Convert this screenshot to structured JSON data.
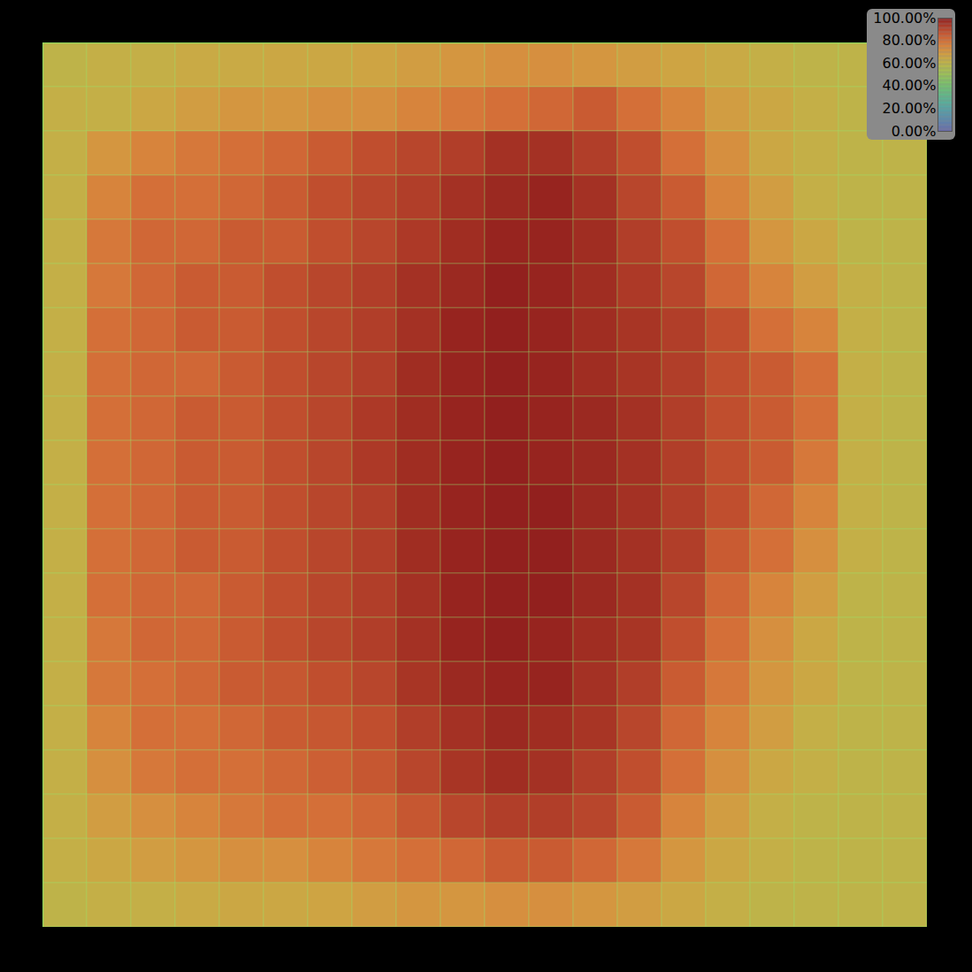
{
  "chart_data": {
    "type": "heatmap",
    "tick_labels": false,
    "cells": [
      [
        60,
        62,
        62,
        64,
        64,
        65,
        65,
        66,
        68,
        70,
        72,
        72,
        70,
        68,
        66,
        64,
        62,
        60,
        60,
        60
      ],
      [
        62,
        62,
        65,
        68,
        70,
        70,
        72,
        72,
        75,
        78,
        80,
        82,
        85,
        80,
        75,
        68,
        65,
        62,
        60,
        60
      ],
      [
        62,
        70,
        75,
        78,
        80,
        82,
        85,
        88,
        90,
        92,
        95,
        95,
        92,
        88,
        80,
        72,
        65,
        62,
        60,
        60
      ],
      [
        62,
        75,
        80,
        80,
        82,
        85,
        88,
        90,
        92,
        95,
        97,
        98,
        95,
        90,
        85,
        75,
        68,
        62,
        60,
        60
      ],
      [
        62,
        78,
        82,
        82,
        85,
        85,
        88,
        90,
        93,
        96,
        98,
        98,
        96,
        92,
        88,
        80,
        70,
        65,
        60,
        60
      ],
      [
        62,
        78,
        82,
        85,
        85,
        88,
        90,
        92,
        95,
        97,
        99,
        98,
        96,
        93,
        90,
        82,
        75,
        68,
        62,
        60
      ],
      [
        62,
        80,
        82,
        85,
        85,
        88,
        90,
        92,
        95,
        98,
        99,
        98,
        96,
        94,
        92,
        88,
        80,
        75,
        62,
        60
      ],
      [
        62,
        80,
        82,
        82,
        85,
        88,
        90,
        92,
        96,
        98,
        99,
        98,
        96,
        94,
        92,
        88,
        85,
        80,
        62,
        60
      ],
      [
        62,
        80,
        82,
        85,
        85,
        88,
        90,
        93,
        96,
        98,
        99,
        98,
        97,
        95,
        92,
        88,
        85,
        80,
        62,
        60
      ],
      [
        62,
        80,
        82,
        85,
        85,
        88,
        90,
        93,
        96,
        98,
        99,
        98,
        97,
        95,
        92,
        88,
        85,
        78,
        62,
        60
      ],
      [
        62,
        80,
        82,
        85,
        85,
        88,
        90,
        92,
        96,
        98,
        99,
        99,
        97,
        95,
        92,
        88,
        82,
        75,
        62,
        60
      ],
      [
        62,
        80,
        82,
        85,
        85,
        88,
        90,
        92,
        96,
        98,
        99,
        99,
        97,
        95,
        92,
        85,
        80,
        72,
        62,
        60
      ],
      [
        62,
        80,
        82,
        82,
        85,
        88,
        90,
        92,
        95,
        98,
        99,
        99,
        97,
        95,
        90,
        82,
        75,
        68,
        60,
        60
      ],
      [
        62,
        78,
        82,
        82,
        85,
        88,
        90,
        92,
        95,
        98,
        99,
        98,
        96,
        94,
        88,
        80,
        72,
        65,
        60,
        60
      ],
      [
        62,
        78,
        80,
        82,
        85,
        86,
        88,
        90,
        94,
        97,
        98,
        98,
        95,
        92,
        85,
        78,
        70,
        65,
        60,
        60
      ],
      [
        62,
        75,
        80,
        80,
        82,
        85,
        86,
        88,
        92,
        95,
        97,
        96,
        94,
        90,
        82,
        75,
        68,
        62,
        60,
        60
      ],
      [
        62,
        72,
        78,
        80,
        80,
        82,
        84,
        86,
        90,
        94,
        96,
        95,
        92,
        88,
        80,
        72,
        65,
        62,
        60,
        60
      ],
      [
        62,
        68,
        72,
        75,
        78,
        80,
        80,
        82,
        86,
        90,
        92,
        92,
        90,
        85,
        75,
        68,
        62,
        60,
        60,
        60
      ],
      [
        62,
        65,
        68,
        70,
        72,
        72,
        75,
        78,
        80,
        82,
        85,
        85,
        82,
        78,
        70,
        65,
        62,
        60,
        60,
        60
      ],
      [
        60,
        62,
        62,
        64,
        65,
        65,
        66,
        68,
        70,
        70,
        72,
        72,
        70,
        68,
        65,
        62,
        60,
        60,
        60,
        60
      ]
    ],
    "color_range": [
      0,
      100
    ],
    "color_ticks": [
      {
        "value": 0,
        "label": "0.00%"
      },
      {
        "value": 20,
        "label": "20.00%"
      },
      {
        "value": 40,
        "label": "40.00%"
      },
      {
        "value": 60,
        "label": "60.00%"
      },
      {
        "value": 80,
        "label": "80.00%"
      },
      {
        "value": 100,
        "label": "100.00%"
      }
    ]
  }
}
